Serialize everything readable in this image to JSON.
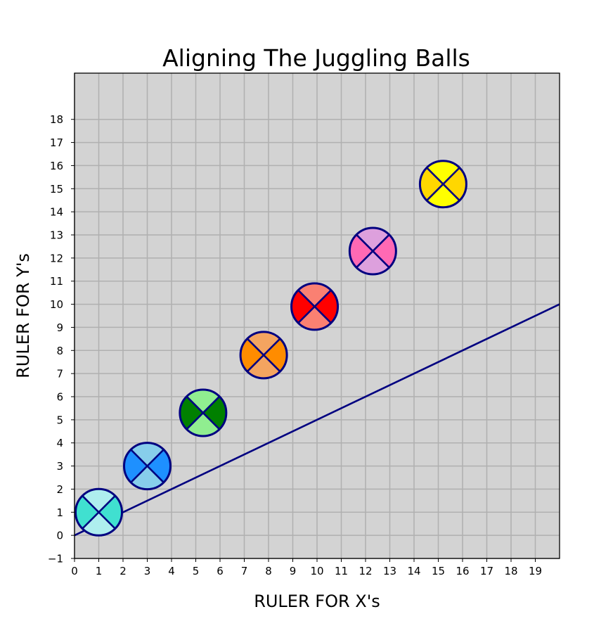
{
  "chart_data": {
    "type": "scatter",
    "title": "Aligning The Juggling Balls",
    "xlabel": "RULER FOR X's",
    "ylabel": "RULER FOR Y's",
    "xlim": [
      0,
      20
    ],
    "ylim": [
      -1,
      20
    ],
    "xticks": [
      0,
      1,
      2,
      3,
      4,
      5,
      6,
      7,
      8,
      9,
      10,
      11,
      12,
      13,
      14,
      15,
      16,
      17,
      18,
      19
    ],
    "yticks": [
      -1,
      0,
      1,
      2,
      3,
      4,
      5,
      6,
      7,
      8,
      9,
      10,
      11,
      12,
      13,
      14,
      15,
      16,
      17,
      18
    ],
    "ytick_labels": [
      "−1",
      "0",
      "1",
      "2",
      "3",
      "4",
      "5",
      "6",
      "7",
      "8",
      "9",
      "10",
      "11",
      "12",
      "13",
      "14",
      "15",
      "16",
      "17",
      "18"
    ],
    "grid": true,
    "background_color": "#d3d3d3",
    "grid_color": "#b0b0b0",
    "outline_color": "#000080",
    "line": {
      "x": [
        0,
        20
      ],
      "y": [
        0,
        10
      ],
      "color": "#000080"
    },
    "points": [
      {
        "x": 1.0,
        "y": 1.0,
        "color_a": "#aeeeee",
        "color_b": "#40e0d0"
      },
      {
        "x": 3.0,
        "y": 3.0,
        "color_a": "#87ceeb",
        "color_b": "#1e90ff"
      },
      {
        "x": 5.3,
        "y": 5.3,
        "color_a": "#90ee90",
        "color_b": "#008000"
      },
      {
        "x": 7.8,
        "y": 7.8,
        "color_a": "#f4a460",
        "color_b": "#ff8c00"
      },
      {
        "x": 9.9,
        "y": 9.9,
        "color_a": "#fa8072",
        "color_b": "#ff0000"
      },
      {
        "x": 12.3,
        "y": 12.3,
        "color_a": "#dda0dd",
        "color_b": "#ff69b4"
      },
      {
        "x": 15.2,
        "y": 15.2,
        "color_a": "#ffff00",
        "color_b": "#ffd700"
      }
    ]
  }
}
